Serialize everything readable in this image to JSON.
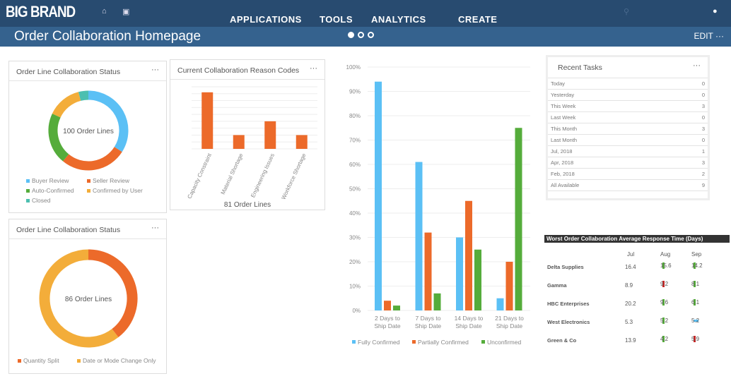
{
  "header": {
    "brand": "BIG BRAND",
    "nav": [
      "APPLICATIONS",
      "TOOLS",
      "ANALYTICS",
      "CREATE"
    ],
    "icons": [
      "home-icon",
      "calendar-icon",
      "search-icon",
      "user-icon"
    ]
  },
  "subheader": {
    "title": "Order Collaboration Homepage",
    "edit_label": "EDIT",
    "more": "···"
  },
  "colors": {
    "blue": "#5bc0f5",
    "orange": "#ec6a2a",
    "green": "#55ac3b",
    "yellow": "#f3ad3a",
    "teal": "#4cbfb0"
  },
  "donut1": {
    "title": "Order Line Collaboration Status",
    "more": "···",
    "center": "100 Order Lines",
    "slices": [
      {
        "label": "Buyer Review",
        "value": 34,
        "color": "#5bc0f5"
      },
      {
        "label": "Seller Review",
        "value": 27,
        "color": "#ec6a2a"
      },
      {
        "label": "Auto-Confirmed",
        "value": 21,
        "color": "#55ac3b"
      },
      {
        "label": "Confirmed by User",
        "value": 14,
        "color": "#f3ad3a"
      },
      {
        "label": "Closed",
        "value": 4,
        "color": "#4cbfb0"
      }
    ]
  },
  "donut2": {
    "title": "Order Line Collaboration Status",
    "more": "···",
    "center": "86 Order Lines",
    "slices": [
      {
        "label": "Quantity Split",
        "value": 34,
        "color": "#ec6a2a"
      },
      {
        "label": "Date or Mode Change Only",
        "value": 52,
        "color": "#f3ad3a"
      }
    ]
  },
  "chart_data": [
    {
      "type": "bar",
      "title": "Current Collaboration Reason Codes",
      "xlabel": "81 Order Lines",
      "categories": [
        "Capacity Constraint",
        "Material Shortage",
        "Engineering Issues",
        "Workforce Shortage"
      ],
      "values": [
        41,
        10,
        20,
        10
      ],
      "ylim": [
        0,
        45
      ],
      "color": "#ec6a2a",
      "grid": true
    },
    {
      "type": "bar",
      "categories": [
        "2 Days to Ship Date",
        "7 Days to Ship Date",
        "14 Days to Ship Date",
        "21 Days to Ship Date"
      ],
      "ylim": [
        0,
        100
      ],
      "yticks": [
        "0%",
        "10%",
        "20%",
        "30%",
        "40%",
        "50%",
        "60%",
        "70%",
        "80%",
        "90%",
        "100%"
      ],
      "grid": true,
      "legend": "bottom",
      "series": [
        {
          "name": "Fully Confirmed",
          "values": [
            94,
            61,
            30,
            5
          ],
          "color": "#5bc0f5"
        },
        {
          "name": "Partially Confirmed",
          "values": [
            4,
            32,
            45,
            20
          ],
          "color": "#ec6a2a"
        },
        {
          "name": "Unconfirmed",
          "values": [
            2,
            7,
            25,
            75
          ],
          "color": "#55ac3b"
        }
      ]
    }
  ],
  "recent_tasks": {
    "title": "Recent Tasks",
    "more": "···",
    "rows": [
      {
        "label": "Today",
        "value": "0"
      },
      {
        "label": "Yesterday",
        "value": "0"
      },
      {
        "label": "This Week",
        "value": "3"
      },
      {
        "label": "Last Week",
        "value": "0"
      },
      {
        "label": "This Month",
        "value": "3"
      },
      {
        "label": "Last Month",
        "value": "0"
      },
      {
        "label": "Jul, 2018",
        "value": "1"
      },
      {
        "label": "Apr, 2018",
        "value": "3"
      },
      {
        "label": "Feb, 2018",
        "value": "2"
      },
      {
        "label": "All Available",
        "value": "9"
      }
    ]
  },
  "worst": {
    "title": "Worst Order Collaboration Average Response Time (Days)",
    "cols": [
      "Jul",
      "Aug",
      "Sep"
    ],
    "rows": [
      {
        "name": "Delta Supplies",
        "jul": "16.4",
        "aug": "15.6",
        "aug_trend": "down",
        "sep": "14.2",
        "sep_trend": "down"
      },
      {
        "name": "Gamma",
        "jul": "8.9",
        "aug": "9.2",
        "aug_trend": "up",
        "sep": "8.1",
        "sep_trend": "down"
      },
      {
        "name": "HBC Enterprises",
        "jul": "20.2",
        "aug": "9.6",
        "aug_trend": "down",
        "sep": "6.1",
        "sep_trend": "down"
      },
      {
        "name": "West Electronics",
        "jul": "5.3",
        "aug": "5.2",
        "aug_trend": "down",
        "sep": "5.2",
        "sep_trend": "flat"
      },
      {
        "name": "Green & Co",
        "jul": "13.9",
        "aug": "4.2",
        "aug_trend": "down",
        "sep": "5.9",
        "sep_trend": "up"
      }
    ]
  }
}
